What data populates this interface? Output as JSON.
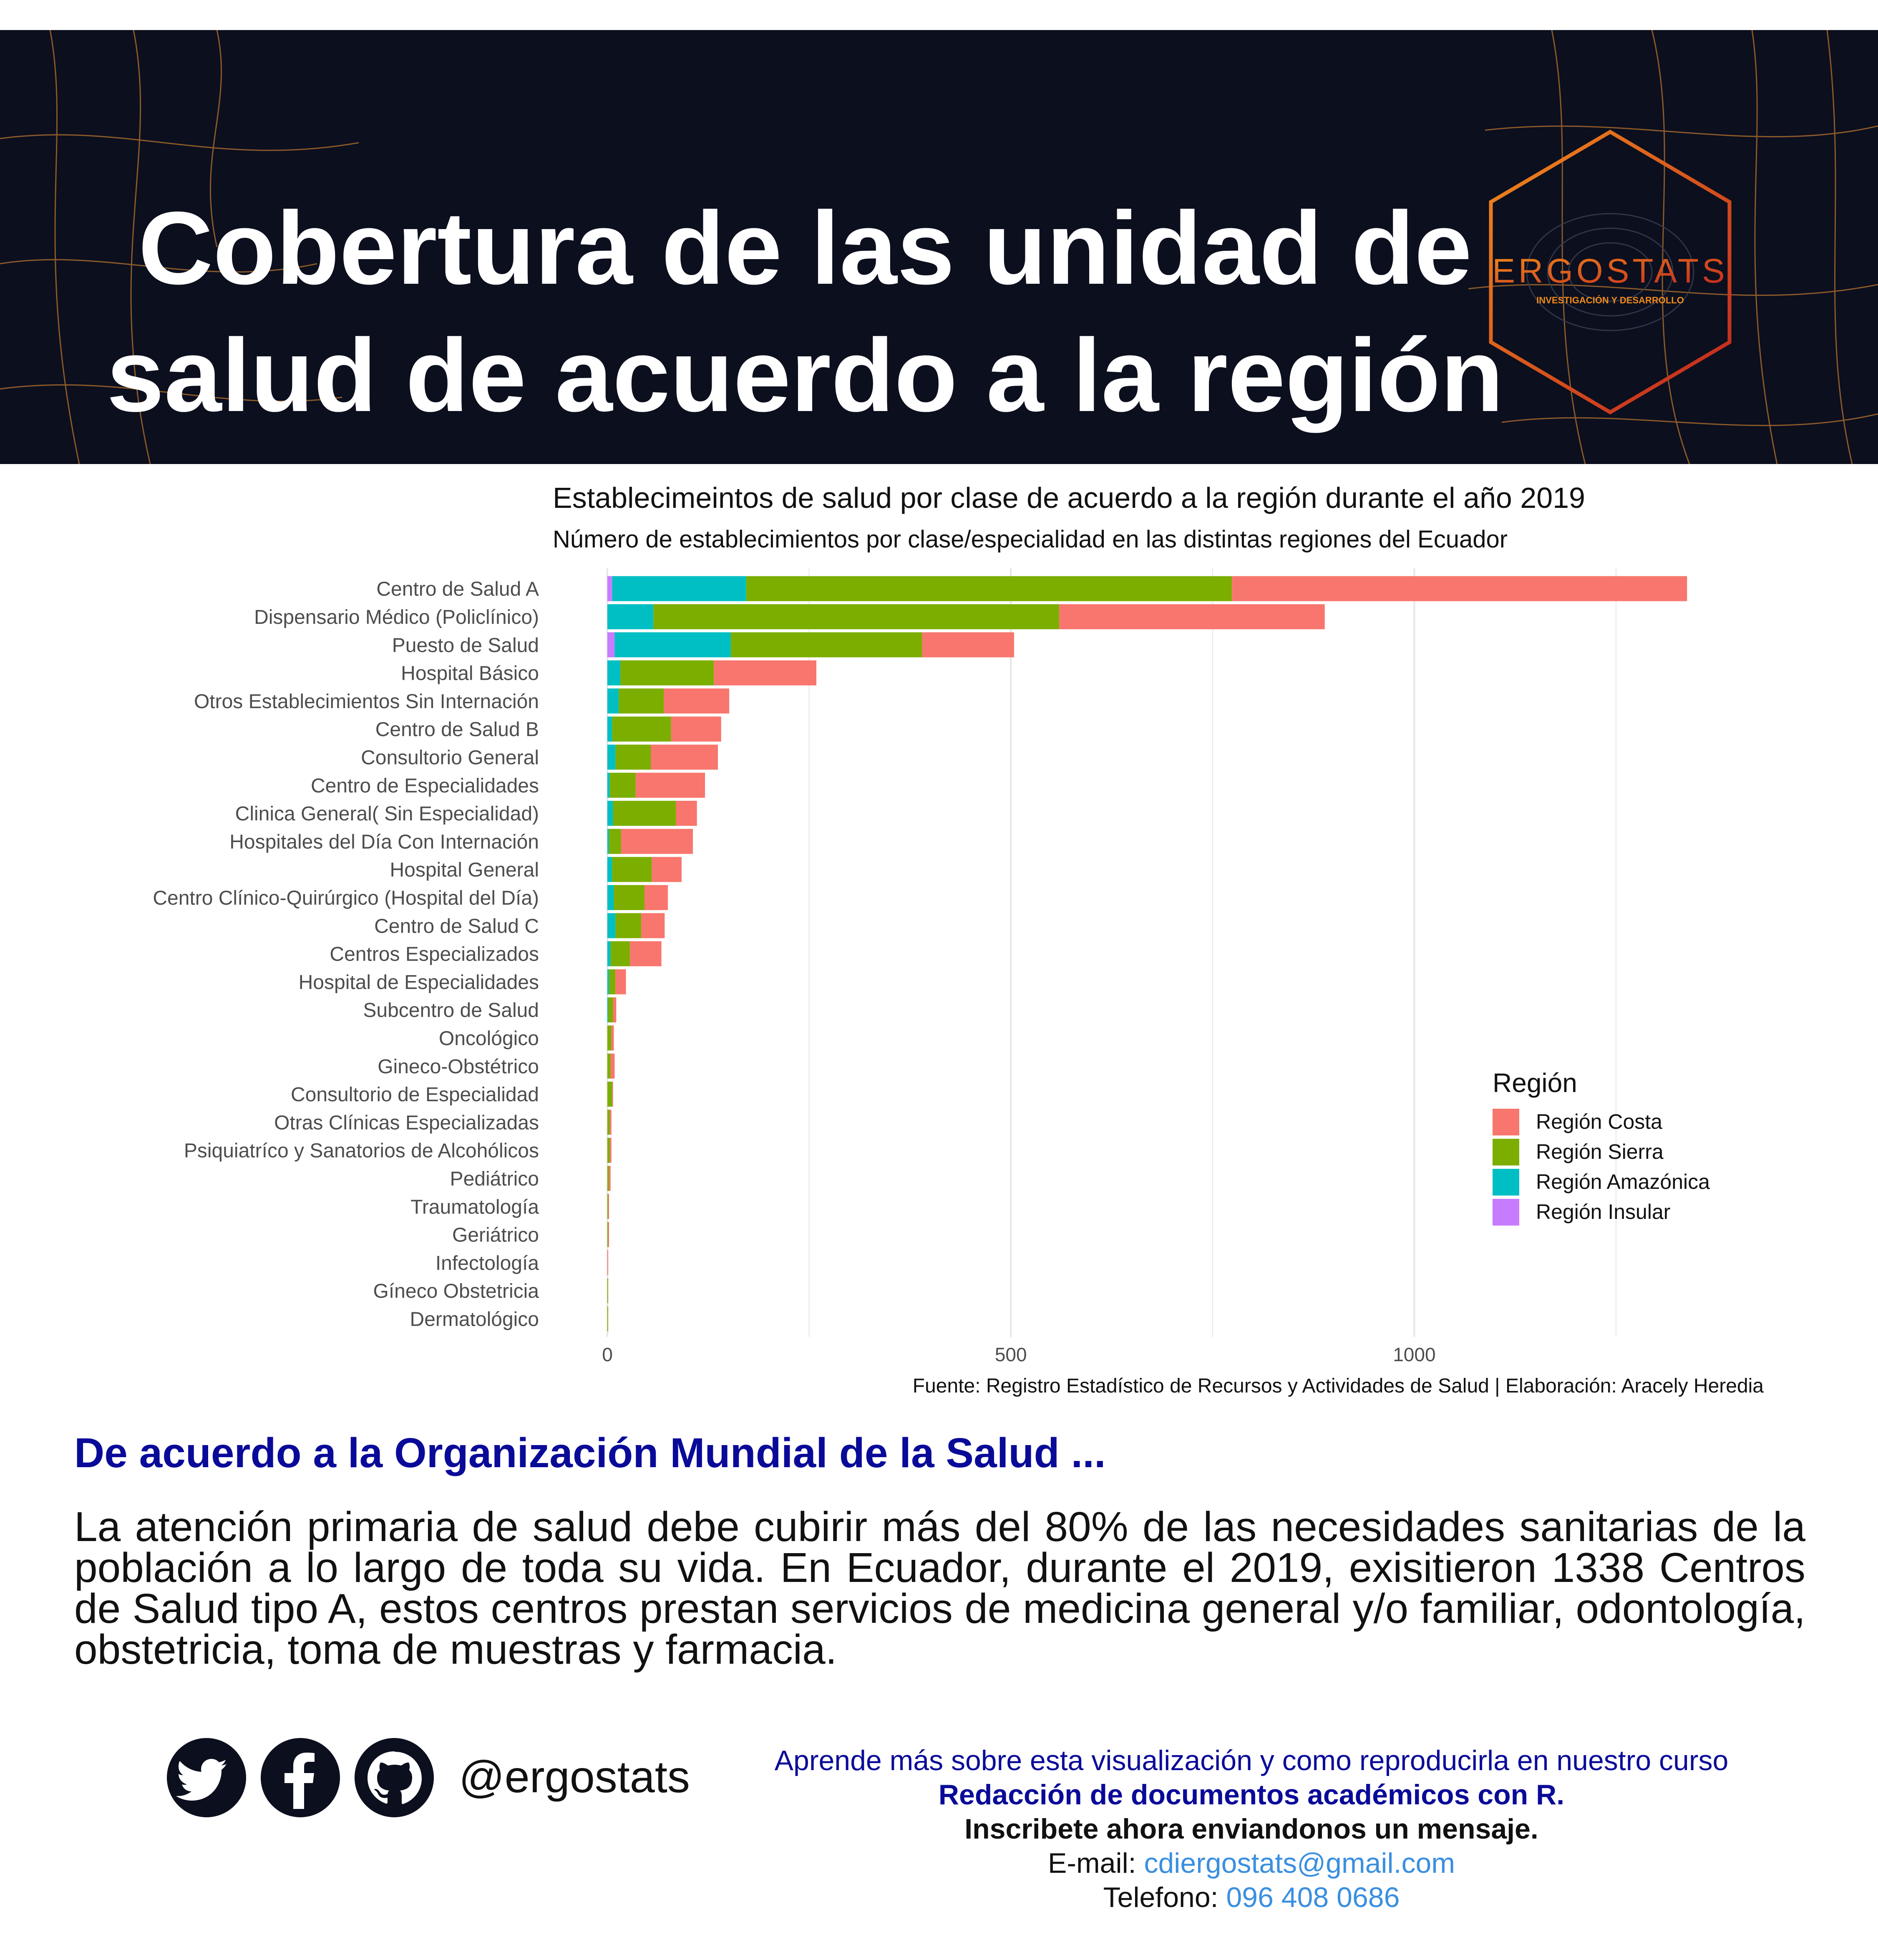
{
  "header": {
    "title_line1": "Cobertura de las unidad de",
    "title_line2": "salud de acuerdo a la región",
    "logo_icon": "ergostats-hexagon-logo",
    "logo_text": "ERGOSTATS",
    "logo_subtext": "INVESTIGACIÓN Y DESARROLLO",
    "bg_color": "#0b0f1e"
  },
  "chart_data": {
    "type": "bar",
    "orientation": "horizontal",
    "stacked": true,
    "title": "Establecimeintos de salud por clase de acuerdo a la región durante el año 2019",
    "subtitle": "Número de establecimientos por clase/especialidad en las distintas regiones del Ecuador",
    "caption": "Fuente:  Registro Estadístico de Recursos y Actividades de Salud | Elaboración: Aracely Heredia",
    "xlabel": "",
    "ylabel": "",
    "xlim": [
      0,
      1372
    ],
    "xticks": [
      0,
      500,
      1000
    ],
    "xtick_labels": [
      "0",
      "500",
      "1000"
    ],
    "grid": true,
    "legend": {
      "title": "Región",
      "position": "right-inside"
    },
    "categories": [
      "Centro de Salud A",
      "Dispensario Médico (Policlínico)",
      "Puesto de Salud",
      "Hospital Básico",
      "Otros Establecimientos Sin Internación",
      "Centro de Salud B",
      "Consultorio General",
      "Centro de Especialidades",
      "Clinica General( Sin Especialidad)",
      "Hospitales del Día Con Internación",
      "Hospital General",
      "Centro Clínico-Quirúrgico (Hospital del Día)",
      "Centro de Salud C",
      "Centros Especializados",
      "Hospital de Especialidades",
      "Subcentro de Salud",
      "Oncológico",
      "Gineco-Obstétrico",
      "Consultorio de Especialidad",
      "Otras Clínicas Especializadas",
      "Psiquiatríco y Sanatorios de Alcohólicos",
      "Pediátrico",
      "Traumatología",
      "Geriátrico",
      "Infectología",
      "Gíneco Obstetricia",
      "Dermatológico"
    ],
    "series": [
      {
        "name": "Región Insular",
        "color": "#c77cff",
        "values": [
          6,
          0,
          9,
          0,
          0,
          0,
          0,
          0,
          0,
          0,
          0,
          0,
          0,
          0,
          0,
          0,
          0,
          0,
          0,
          0,
          0,
          0,
          0,
          0,
          0,
          0,
          0
        ]
      },
      {
        "name": "Región Amazónica",
        "color": "#00bfc4",
        "values": [
          166,
          57,
          144,
          16,
          14,
          6,
          10,
          3,
          7,
          2,
          6,
          8,
          10,
          4,
          2,
          1,
          0,
          0,
          0,
          0,
          0,
          0,
          0,
          0,
          0,
          0,
          0
        ]
      },
      {
        "name": "Región Sierra",
        "color": "#7cae00",
        "values": [
          602,
          503,
          237,
          116,
          56,
          73,
          44,
          32,
          78,
          15,
          49,
          38,
          32,
          24,
          8,
          6,
          5,
          4,
          6,
          3,
          3,
          2,
          1,
          1,
          0,
          1,
          1
        ]
      },
      {
        "name": "Región Costa",
        "color": "#f8766d",
        "values": [
          564,
          329,
          114,
          127,
          81,
          62,
          83,
          86,
          26,
          89,
          37,
          29,
          29,
          39,
          13,
          4,
          3,
          5,
          1,
          2,
          2,
          2,
          1,
          1,
          1,
          0,
          0
        ]
      }
    ]
  },
  "oms": {
    "heading": "De acuerdo a la Organización Mundial de la Salud ...",
    "paragraph": "La atención primaria de salud debe cubirir más del 80% de las necesidades sanitarias de la población a lo largo de toda su vida. En Ecuador, durante el 2019, exisitieron 1338 Centros de Salud tipo A, estos centros prestan servicios de medicina general y/o familiar, odontología, obstetricia, toma de muestras y farmacia."
  },
  "footer": {
    "social_icons": [
      "twitter-icon",
      "facebook-icon",
      "github-icon"
    ],
    "handle": "@ergostats",
    "course_line1": "Aprende más sobre esta visualización y como reproducirla en nuestro curso",
    "course_line2": "Redacción de documentos académicos con R.",
    "course_line3": "Inscribete ahora enviandonos un mensaje.",
    "email_label": "E-mail: ",
    "email": "cdiergostats@gmail.com",
    "phone_label": "Telefono: ",
    "phone": "096 408 0686"
  }
}
